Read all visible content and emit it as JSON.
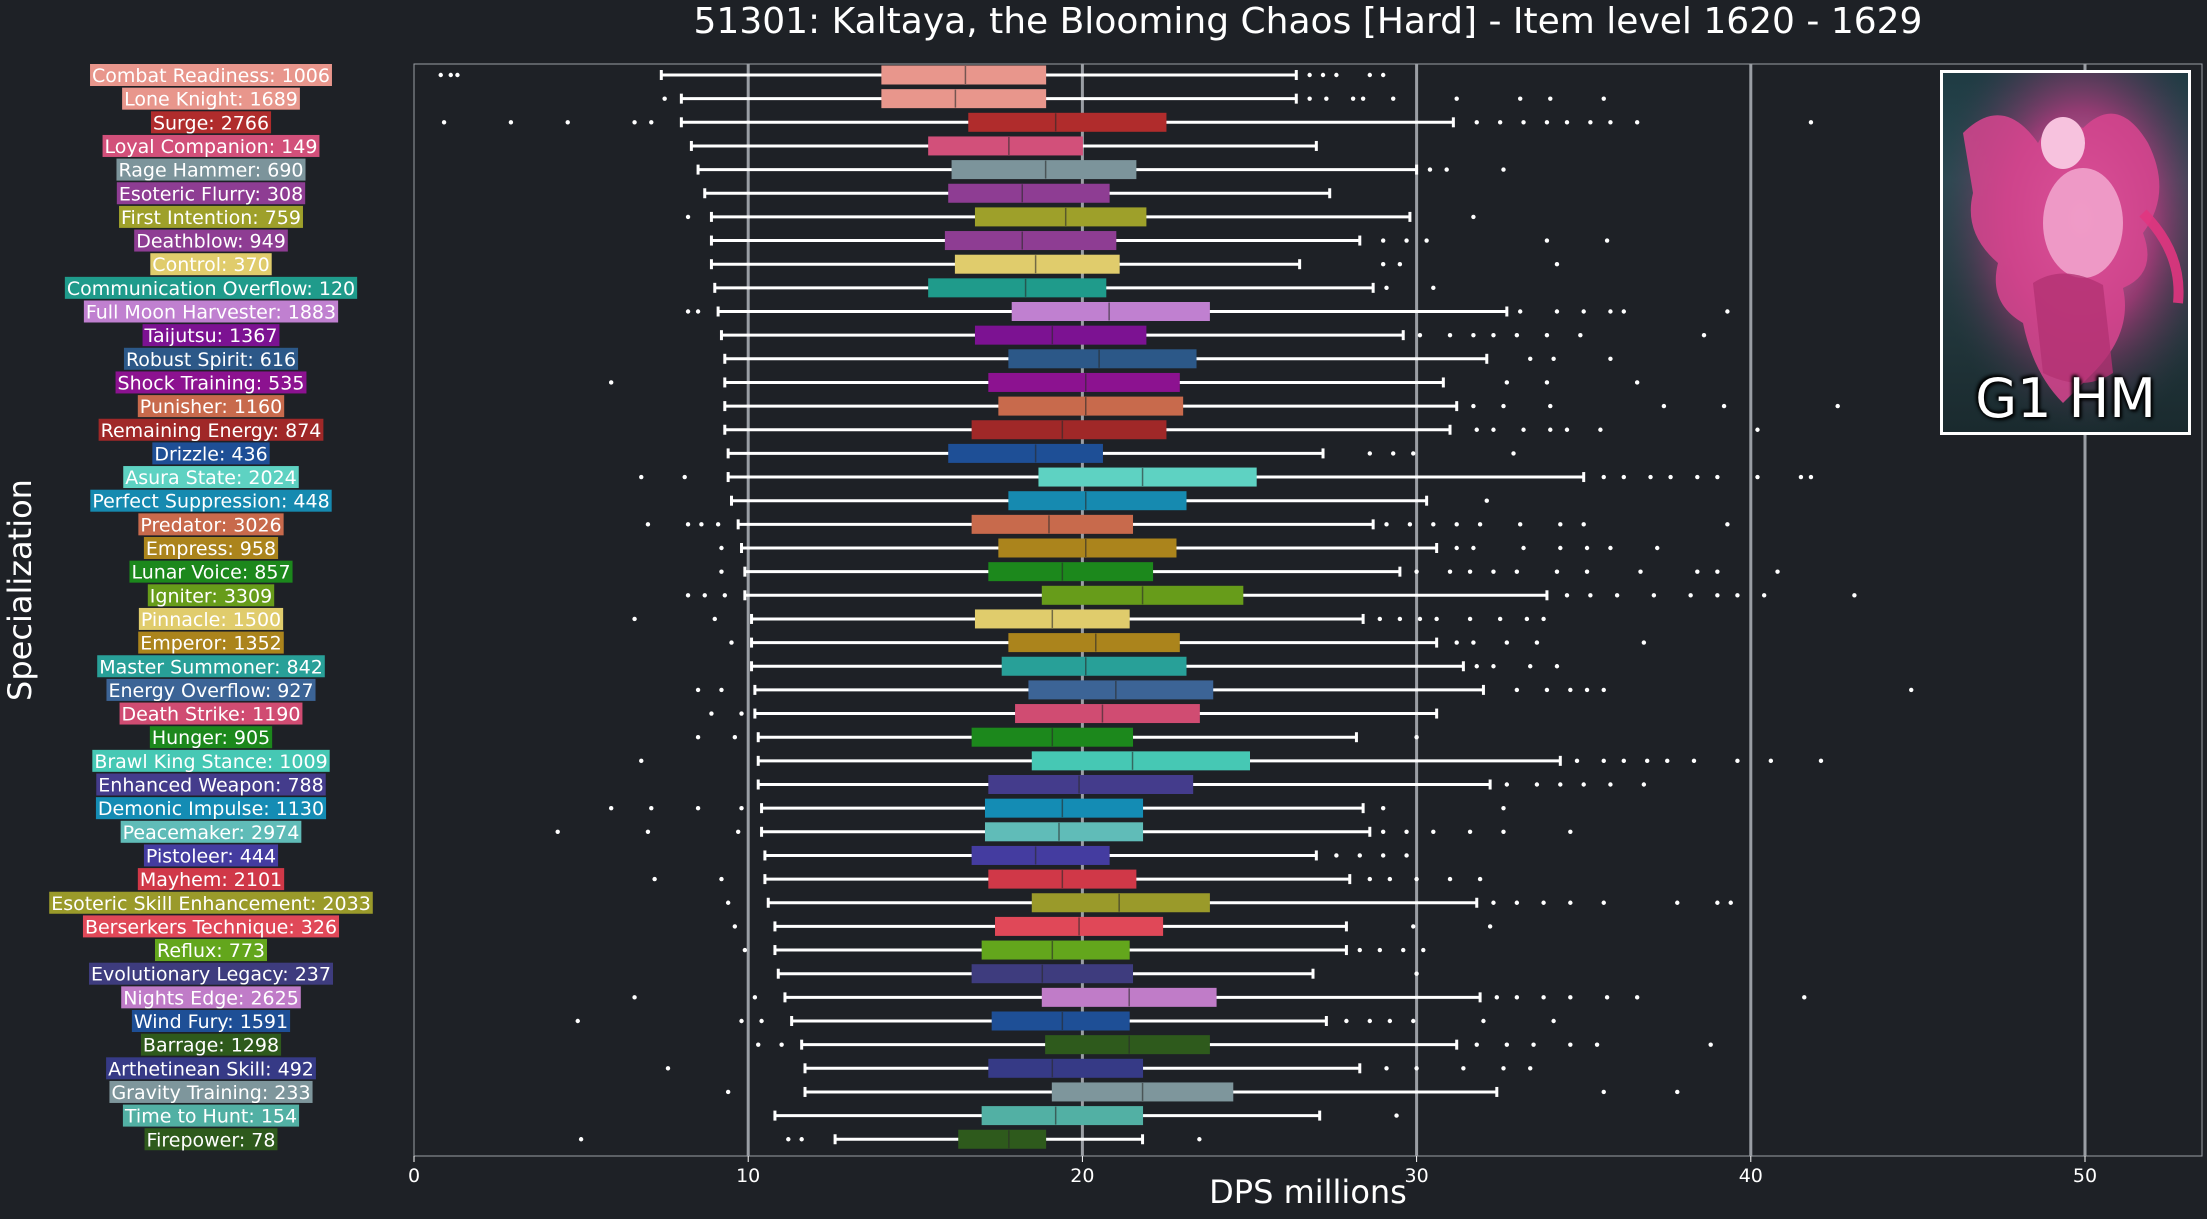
{
  "chart_data": {
    "type": "box",
    "title": "51301: Kaltaya, the Blooming Chaos [Hard] - Item level 1620 - 1629",
    "xlabel": "DPS millions",
    "ylabel": "Specialization",
    "xlim": [
      0,
      53.5
    ],
    "xticks": [
      0,
      10,
      20,
      30,
      40,
      50
    ],
    "grid": "vertical lines at 10, 20, 30, 40, 50",
    "orientation": "horizontal",
    "categories": [
      {
        "name": "Combat Readiness: 1006",
        "color": "#e8968c",
        "whisker_low": 7.4,
        "q1": 14.0,
        "median": 16.5,
        "q3": 18.9,
        "whisker_high": 26.4,
        "outliers": [
          0.8,
          1.1,
          1.3,
          26.8,
          27.2,
          27.6,
          28.6,
          29.0
        ]
      },
      {
        "name": "Lone Knight: 1689",
        "color": "#e8968c",
        "whisker_low": 8.0,
        "q1": 14.0,
        "median": 16.2,
        "q3": 18.9,
        "whisker_high": 26.4,
        "outliers": [
          7.5,
          26.8,
          27.3,
          28.1,
          28.4,
          29.3,
          31.2,
          33.1,
          34.0,
          35.6
        ]
      },
      {
        "name": "Surge: 2766",
        "color": "#b02c2c",
        "whisker_low": 8.0,
        "q1": 16.6,
        "median": 19.2,
        "q3": 22.5,
        "whisker_high": 31.1,
        "outliers": [
          0.9,
          2.9,
          4.6,
          6.6,
          7.1,
          31.8,
          32.5,
          33.2,
          33.9,
          34.5,
          35.2,
          35.8,
          36.6,
          41.8
        ]
      },
      {
        "name": "Loyal Companion: 149",
        "color": "#d2507a",
        "whisker_low": 8.3,
        "q1": 15.4,
        "median": 17.8,
        "q3": 20.0,
        "whisker_high": 27.0,
        "outliers": []
      },
      {
        "name": "Rage Hammer: 690",
        "color": "#7c949b",
        "whisker_low": 8.5,
        "q1": 16.1,
        "median": 18.9,
        "q3": 21.6,
        "whisker_high": 30.0,
        "outliers": [
          30.4,
          30.9,
          32.6
        ]
      },
      {
        "name": "Esoteric Flurry: 308",
        "color": "#8e3d93",
        "whisker_low": 8.7,
        "q1": 16.0,
        "median": 18.2,
        "q3": 20.8,
        "whisker_high": 27.4,
        "outliers": []
      },
      {
        "name": "First Intention: 759",
        "color": "#9ea02a",
        "whisker_low": 8.9,
        "q1": 16.8,
        "median": 19.5,
        "q3": 21.9,
        "whisker_high": 29.8,
        "outliers": [
          8.2,
          31.7
        ]
      },
      {
        "name": "Deathblow: 949",
        "color": "#8e3d93",
        "whisker_low": 8.9,
        "q1": 15.9,
        "median": 18.2,
        "q3": 21.0,
        "whisker_high": 28.3,
        "outliers": [
          29.0,
          29.7,
          30.3,
          33.9,
          35.7
        ]
      },
      {
        "name": "Control: 370",
        "color": "#e0cc6c",
        "whisker_low": 8.9,
        "q1": 16.2,
        "median": 18.6,
        "q3": 21.1,
        "whisker_high": 26.5,
        "outliers": [
          29.0,
          29.5,
          34.2
        ]
      },
      {
        "name": "Communication Overflow: 120",
        "color": "#1f9b8b",
        "whisker_low": 9.0,
        "q1": 15.4,
        "median": 18.3,
        "q3": 20.7,
        "whisker_high": 28.7,
        "outliers": [
          29.1,
          30.5
        ]
      },
      {
        "name": "Full Moon Harvester: 1883",
        "color": "#c080d0",
        "whisker_low": 9.1,
        "q1": 17.9,
        "median": 20.8,
        "q3": 23.8,
        "whisker_high": 32.7,
        "outliers": [
          8.2,
          8.5,
          33.1,
          34.2,
          35.0,
          35.8,
          36.2,
          39.3
        ]
      },
      {
        "name": "Taijutsu: 1367",
        "color": "#7c1292",
        "whisker_low": 9.2,
        "q1": 16.8,
        "median": 19.1,
        "q3": 21.9,
        "whisker_high": 29.6,
        "outliers": [
          30.1,
          31.0,
          31.7,
          32.3,
          33.0,
          33.9,
          34.9,
          38.6
        ]
      },
      {
        "name": "Robust Spirit: 616",
        "color": "#2c5888",
        "whisker_low": 9.3,
        "q1": 17.8,
        "median": 20.5,
        "q3": 23.4,
        "whisker_high": 32.1,
        "outliers": [
          33.4,
          34.1,
          35.8
        ]
      },
      {
        "name": "Shock Training: 535",
        "color": "#8c1290",
        "whisker_low": 9.3,
        "q1": 17.2,
        "median": 20.1,
        "q3": 22.9,
        "whisker_high": 30.8,
        "outliers": [
          5.9,
          32.7,
          33.9,
          36.6
        ]
      },
      {
        "name": "Punisher: 1160",
        "color": "#c86a4c",
        "whisker_low": 9.3,
        "q1": 17.5,
        "median": 20.1,
        "q3": 23.0,
        "whisker_high": 31.2,
        "outliers": [
          31.7,
          32.6,
          34.0,
          37.4,
          39.2,
          42.6
        ]
      },
      {
        "name": "Remaining Energy: 874",
        "color": "#a02828",
        "whisker_low": 9.3,
        "q1": 16.7,
        "median": 19.4,
        "q3": 22.5,
        "whisker_high": 31.0,
        "outliers": [
          31.8,
          32.3,
          33.2,
          34.0,
          34.5,
          35.5,
          40.2
        ]
      },
      {
        "name": "Drizzle: 436",
        "color": "#1e4f96",
        "whisker_low": 9.4,
        "q1": 16.0,
        "median": 18.6,
        "q3": 20.6,
        "whisker_high": 27.2,
        "outliers": [
          28.6,
          29.3,
          29.9,
          32.9
        ]
      },
      {
        "name": "Asura State: 2024",
        "color": "#5ed2c2",
        "whisker_low": 9.4,
        "q1": 18.7,
        "median": 21.8,
        "q3": 25.2,
        "whisker_high": 35.0,
        "outliers": [
          6.8,
          8.1,
          35.6,
          36.2,
          37.0,
          37.6,
          38.4,
          39.0,
          40.2,
          41.5,
          41.8
        ]
      },
      {
        "name": "Perfect Suppression: 448",
        "color": "#168ab0",
        "whisker_low": 9.5,
        "q1": 17.8,
        "median": 20.1,
        "q3": 23.1,
        "whisker_high": 30.3,
        "outliers": [
          32.1
        ]
      },
      {
        "name": "Predator: 3026",
        "color": "#c86a4c",
        "whisker_low": 9.7,
        "q1": 16.7,
        "median": 19.0,
        "q3": 21.5,
        "whisker_high": 28.7,
        "outliers": [
          7.0,
          8.2,
          8.6,
          9.1,
          29.1,
          29.8,
          30.5,
          31.2,
          31.9,
          33.1,
          34.3,
          35.0,
          39.3
        ]
      },
      {
        "name": "Empress: 958",
        "color": "#ab841c",
        "whisker_low": 9.8,
        "q1": 17.5,
        "median": 20.1,
        "q3": 22.8,
        "whisker_high": 30.6,
        "outliers": [
          9.2,
          31.2,
          31.7,
          33.2,
          34.3,
          35.1,
          35.8,
          37.2
        ]
      },
      {
        "name": "Lunar Voice: 857",
        "color": "#1c881c",
        "whisker_low": 9.9,
        "q1": 17.2,
        "median": 19.4,
        "q3": 22.1,
        "whisker_high": 29.5,
        "outliers": [
          9.2,
          30.0,
          31.0,
          31.6,
          32.3,
          33.0,
          34.2,
          35.1,
          36.7,
          38.4,
          39.0,
          40.8
        ]
      },
      {
        "name": "Igniter: 3309",
        "color": "#679c1a",
        "whisker_low": 9.9,
        "q1": 18.8,
        "median": 21.8,
        "q3": 24.8,
        "whisker_high": 33.9,
        "outliers": [
          8.2,
          8.7,
          9.3,
          34.5,
          35.2,
          36.0,
          37.1,
          38.2,
          39.0,
          39.6,
          40.4,
          43.1
        ]
      },
      {
        "name": "Pinnacle: 1500",
        "color": "#e0cc6c",
        "whisker_low": 10.1,
        "q1": 16.8,
        "median": 19.1,
        "q3": 21.4,
        "whisker_high": 28.4,
        "outliers": [
          6.6,
          9.0,
          28.9,
          29.5,
          30.1,
          30.6,
          31.6,
          32.5,
          33.3,
          33.8
        ]
      },
      {
        "name": "Emperor: 1352",
        "color": "#ab841c",
        "whisker_low": 10.1,
        "q1": 17.8,
        "median": 20.4,
        "q3": 22.9,
        "whisker_high": 30.6,
        "outliers": [
          9.5,
          31.2,
          31.7,
          32.7,
          33.6,
          36.8
        ]
      },
      {
        "name": "Master Summoner: 842",
        "color": "#28a098",
        "whisker_low": 10.1,
        "q1": 17.6,
        "median": 20.1,
        "q3": 23.1,
        "whisker_high": 31.4,
        "outliers": [
          31.8,
          32.3,
          33.4,
          34.2
        ]
      },
      {
        "name": "Energy Overflow: 927",
        "color": "#3c6496",
        "whisker_low": 10.2,
        "q1": 18.4,
        "median": 21.0,
        "q3": 23.9,
        "whisker_high": 32.0,
        "outliers": [
          8.5,
          9.2,
          33.0,
          33.9,
          34.6,
          35.1,
          35.6,
          44.8
        ]
      },
      {
        "name": "Death Strike: 1190",
        "color": "#d04c72",
        "whisker_low": 10.2,
        "q1": 18.0,
        "median": 20.6,
        "q3": 23.5,
        "whisker_high": 30.6,
        "outliers": [
          8.9,
          9.8
        ]
      },
      {
        "name": "Hunger: 905",
        "color": "#1c881c",
        "whisker_low": 10.3,
        "q1": 16.7,
        "median": 19.1,
        "q3": 21.5,
        "whisker_high": 28.2,
        "outliers": [
          8.5,
          9.6,
          30.0
        ]
      },
      {
        "name": "Brawl King Stance: 1009",
        "color": "#46c8b4",
        "whisker_low": 10.3,
        "q1": 18.5,
        "median": 21.5,
        "q3": 25.0,
        "whisker_high": 34.3,
        "outliers": [
          6.8,
          34.8,
          35.6,
          36.2,
          36.9,
          37.5,
          38.3,
          39.6,
          40.6,
          42.1
        ]
      },
      {
        "name": "Enhanced Weapon: 788",
        "color": "#443c8c",
        "whisker_low": 10.3,
        "q1": 17.2,
        "median": 19.9,
        "q3": 23.3,
        "whisker_high": 32.2,
        "outliers": [
          32.7,
          33.6,
          34.3,
          35.0,
          35.8,
          36.8
        ]
      },
      {
        "name": "Demonic Impulse: 1130",
        "color": "#148cb4",
        "whisker_low": 10.4,
        "q1": 17.1,
        "median": 19.4,
        "q3": 21.8,
        "whisker_high": 28.4,
        "outliers": [
          5.9,
          7.1,
          8.5,
          9.8,
          29.0,
          32.6
        ]
      },
      {
        "name": "Peacemaker: 2974",
        "color": "#60bcb8",
        "whisker_low": 10.4,
        "q1": 17.1,
        "median": 19.3,
        "q3": 21.8,
        "whisker_high": 28.6,
        "outliers": [
          4.3,
          7.0,
          9.7,
          29.0,
          29.7,
          30.5,
          31.6,
          32.6,
          34.6
        ]
      },
      {
        "name": "Pistoleer: 444",
        "color": "#443ca0",
        "whisker_low": 10.5,
        "q1": 16.7,
        "median": 18.6,
        "q3": 20.8,
        "whisker_high": 27.0,
        "outliers": [
          27.6,
          28.3,
          29.0,
          29.7
        ]
      },
      {
        "name": "Mayhem: 2101",
        "color": "#d03848",
        "whisker_low": 10.5,
        "q1": 17.2,
        "median": 19.4,
        "q3": 21.6,
        "whisker_high": 28.0,
        "outliers": [
          7.2,
          9.2,
          28.6,
          29.2,
          30.0,
          31.0,
          31.9
        ]
      },
      {
        "name": "Esoteric Skill Enhancement: 2033",
        "color": "#9a9a2a",
        "whisker_low": 10.6,
        "q1": 18.5,
        "median": 21.1,
        "q3": 23.8,
        "whisker_high": 31.8,
        "outliers": [
          9.4,
          32.3,
          33.0,
          33.8,
          34.6,
          35.6,
          37.8,
          39.0,
          39.4
        ]
      },
      {
        "name": "Berserkers Technique: 326",
        "color": "#e04858",
        "whisker_low": 10.8,
        "q1": 17.4,
        "median": 19.9,
        "q3": 22.4,
        "whisker_high": 27.9,
        "outliers": [
          9.6,
          29.9,
          32.2
        ]
      },
      {
        "name": "Reflux: 773",
        "color": "#63a61c",
        "whisker_low": 10.8,
        "q1": 17.0,
        "median": 19.1,
        "q3": 21.4,
        "whisker_high": 27.9,
        "outliers": [
          9.9,
          28.3,
          28.9,
          29.6,
          30.2
        ]
      },
      {
        "name": "Evolutionary Legacy: 237",
        "color": "#3e3c7e",
        "whisker_low": 10.9,
        "q1": 16.7,
        "median": 18.8,
        "q3": 21.5,
        "whisker_high": 26.9,
        "outliers": [
          30.0
        ]
      },
      {
        "name": "Nights Edge: 2625",
        "color": "#c07cc8",
        "whisker_low": 11.1,
        "q1": 18.8,
        "median": 21.4,
        "q3": 24.0,
        "whisker_high": 31.9,
        "outliers": [
          6.6,
          10.2,
          32.4,
          33.0,
          33.8,
          34.6,
          35.7,
          36.6,
          41.6
        ]
      },
      {
        "name": "Wind Fury: 1591",
        "color": "#1e4f96",
        "whisker_low": 11.3,
        "q1": 17.3,
        "median": 19.4,
        "q3": 21.4,
        "whisker_high": 27.3,
        "outliers": [
          4.9,
          9.8,
          10.4,
          27.9,
          28.6,
          29.2,
          29.9,
          32.0,
          34.1
        ]
      },
      {
        "name": "Barrage: 1298",
        "color": "#2e5a1c",
        "whisker_low": 11.6,
        "q1": 18.9,
        "median": 21.4,
        "q3": 23.8,
        "whisker_high": 31.2,
        "outliers": [
          10.3,
          11.0,
          31.8,
          32.7,
          33.5,
          34.6,
          35.4,
          38.8
        ]
      },
      {
        "name": "Arthetinean Skill: 492",
        "color": "#363a86",
        "whisker_low": 11.7,
        "q1": 17.2,
        "median": 19.1,
        "q3": 21.8,
        "whisker_high": 28.3,
        "outliers": [
          7.6,
          29.1,
          30.0,
          31.4,
          32.6,
          33.4
        ]
      },
      {
        "name": "Gravity Training: 233",
        "color": "#7e969c",
        "whisker_low": 11.7,
        "q1": 19.1,
        "median": 21.8,
        "q3": 24.5,
        "whisker_high": 32.4,
        "outliers": [
          9.4,
          35.6,
          37.8
        ]
      },
      {
        "name": "Time to Hunt: 154",
        "color": "#52b0a4",
        "whisker_low": 10.8,
        "q1": 17.0,
        "median": 19.2,
        "q3": 21.8,
        "whisker_high": 27.1,
        "outliers": [
          29.4
        ]
      },
      {
        "name": "Firepower: 78",
        "color": "#2e5a1c",
        "whisker_low": 12.6,
        "q1": 16.3,
        "median": 17.8,
        "q3": 18.9,
        "whisker_high": 21.8,
        "outliers": [
          5.0,
          11.2,
          11.6,
          23.5
        ]
      }
    ]
  },
  "badge": {
    "text": "G1 HM",
    "image": "kaltaya-boss-portrait"
  }
}
